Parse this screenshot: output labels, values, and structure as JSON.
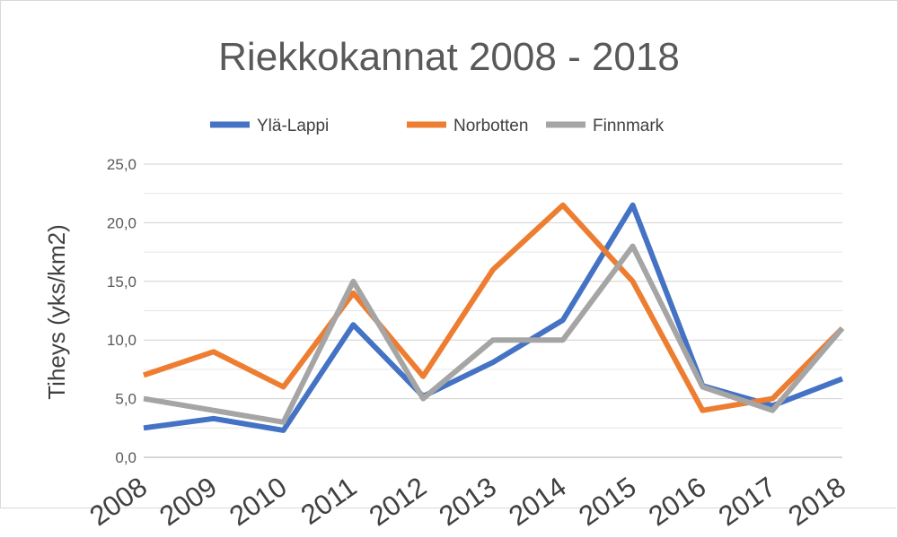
{
  "chart_data": {
    "type": "line",
    "title": "Riekkokannat 2008 - 2018",
    "ylabel": "Tiheys  (yks/km2)",
    "xlabel": "",
    "categories": [
      "2008",
      "2009",
      "2010",
      "2011",
      "2012",
      "2013",
      "2014",
      "2015",
      "2016",
      "2017",
      "2018"
    ],
    "ylim": [
      0,
      25
    ],
    "yticks": [
      "0,0",
      "5,0",
      "10,0",
      "15,0",
      "20,0",
      "25,0"
    ],
    "grid": true,
    "legend_position": "top",
    "series": [
      {
        "name": "Ylä-Lappi",
        "color": "#4472C4",
        "values": [
          2.5,
          3.3,
          2.3,
          11.3,
          5.2,
          8.1,
          11.7,
          21.5,
          6.1,
          4.4,
          6.7
        ]
      },
      {
        "name": "Norbotten",
        "color": "#ED7D31",
        "values": [
          7.0,
          9.0,
          6.0,
          14.0,
          6.9,
          16.0,
          21.5,
          15.0,
          4.0,
          5.0,
          11.0
        ]
      },
      {
        "name": "Finnmark",
        "color": "#A5A5A5",
        "values": [
          5.0,
          4.0,
          3.0,
          15.0,
          5.0,
          10.0,
          10.0,
          18.0,
          6.0,
          4.0,
          11.0
        ]
      }
    ]
  }
}
